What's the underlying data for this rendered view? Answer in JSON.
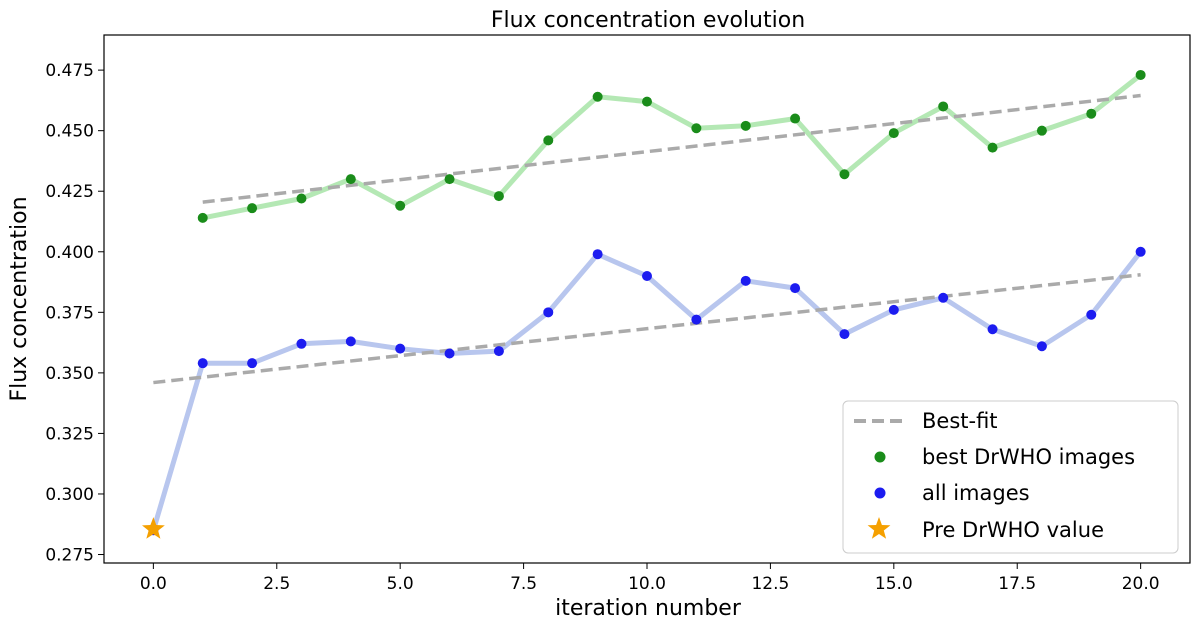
{
  "chart_data": {
    "type": "line",
    "title": "Flux concentration evolution",
    "xlabel": "iteration number",
    "ylabel": "Flux concentration",
    "xlim": [
      -1.0,
      21.0
    ],
    "ylim": [
      0.2715,
      0.4895
    ],
    "xticks": [
      "0.0",
      "2.5",
      "5.0",
      "7.5",
      "10.0",
      "12.5",
      "15.0",
      "17.5",
      "20.0"
    ],
    "xtick_values": [
      0,
      2.5,
      5,
      7.5,
      10,
      12.5,
      15,
      17.5,
      20
    ],
    "yticks": [
      "0.275",
      "0.300",
      "0.325",
      "0.350",
      "0.375",
      "0.400",
      "0.425",
      "0.450",
      "0.475"
    ],
    "ytick_values": [
      0.275,
      0.3,
      0.325,
      0.35,
      0.375,
      0.4,
      0.425,
      0.45,
      0.475
    ],
    "grid": false,
    "legend_position": "bottom-right",
    "legend": [
      "Best-fit",
      "best DrWHO images",
      "all images",
      "Pre DrWHO value"
    ],
    "series": [
      {
        "name": "best DrWHO images",
        "color": "#1a8c1a",
        "line_color": "#b4e8b4",
        "x": [
          1,
          2,
          3,
          4,
          5,
          6,
          7,
          8,
          9,
          10,
          11,
          12,
          13,
          14,
          15,
          16,
          17,
          18,
          19,
          20
        ],
        "y": [
          0.414,
          0.418,
          0.422,
          0.43,
          0.419,
          0.43,
          0.423,
          0.446,
          0.464,
          0.462,
          0.451,
          0.452,
          0.455,
          0.432,
          0.449,
          0.46,
          0.443,
          0.45,
          0.457,
          0.473
        ]
      },
      {
        "name": "all images",
        "color": "#1c1cf0",
        "line_color": "#b8c6ee",
        "x": [
          0,
          1,
          2,
          3,
          4,
          5,
          6,
          7,
          8,
          9,
          10,
          11,
          12,
          13,
          14,
          15,
          16,
          17,
          18,
          19,
          20
        ],
        "y": [
          0.285,
          0.354,
          0.354,
          0.362,
          0.363,
          0.36,
          0.358,
          0.359,
          0.375,
          0.399,
          0.39,
          0.372,
          0.388,
          0.385,
          0.366,
          0.376,
          0.381,
          0.368,
          0.361,
          0.374,
          0.4
        ]
      },
      {
        "name": "Best-fit",
        "style": "dashed",
        "color": "#aaaaaa",
        "segments": [
          {
            "x": [
              1,
              20
            ],
            "y": [
              0.4205,
              0.4645
            ]
          },
          {
            "x": [
              0,
              20
            ],
            "y": [
              0.346,
              0.3905
            ]
          }
        ]
      },
      {
        "name": "Pre DrWHO value",
        "marker": "star",
        "color": "#f5a000",
        "x": [
          0
        ],
        "y": [
          0.2855
        ]
      }
    ]
  }
}
